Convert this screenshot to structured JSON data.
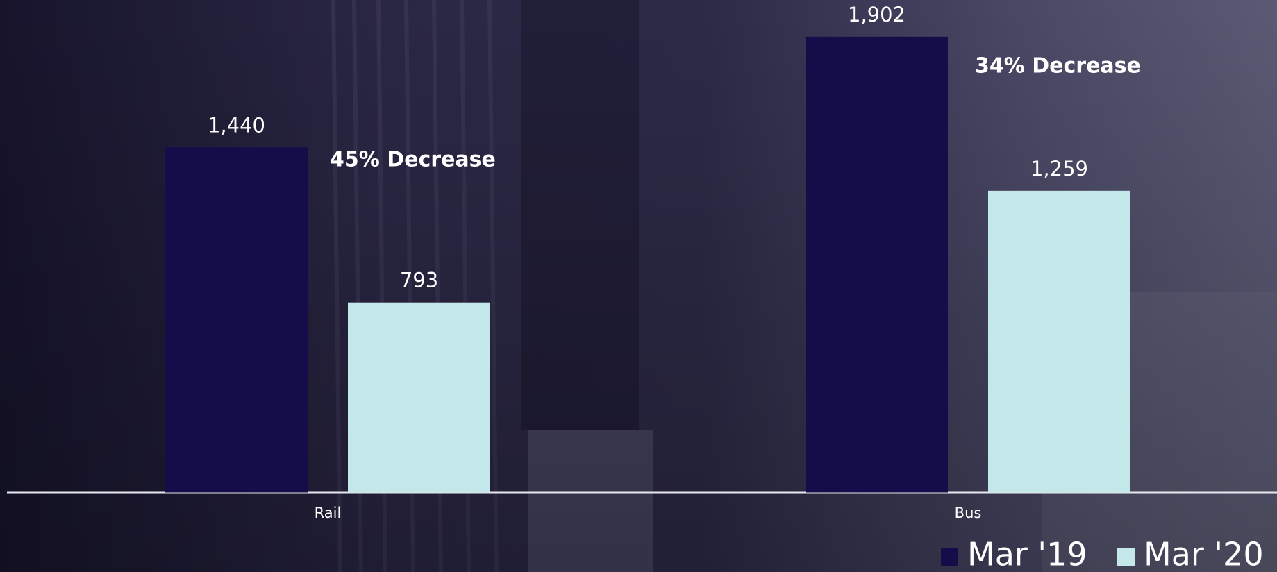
{
  "chart_data": {
    "type": "bar",
    "categories": [
      "Rail",
      "Bus"
    ],
    "series": [
      {
        "name": "Mar '19",
        "color": "#150c4a",
        "values": [
          1440,
          1902
        ],
        "value_labels": [
          "1,440",
          "1,902"
        ]
      },
      {
        "name": "Mar '20",
        "color": "#c4e8e9",
        "values": [
          793,
          1259
        ],
        "value_labels": [
          "793",
          "1,259"
        ]
      }
    ],
    "annotations": [
      "45% Decrease",
      "34% Decrease"
    ],
    "ylim": [
      0,
      2000
    ],
    "legend": "bottom-right"
  }
}
